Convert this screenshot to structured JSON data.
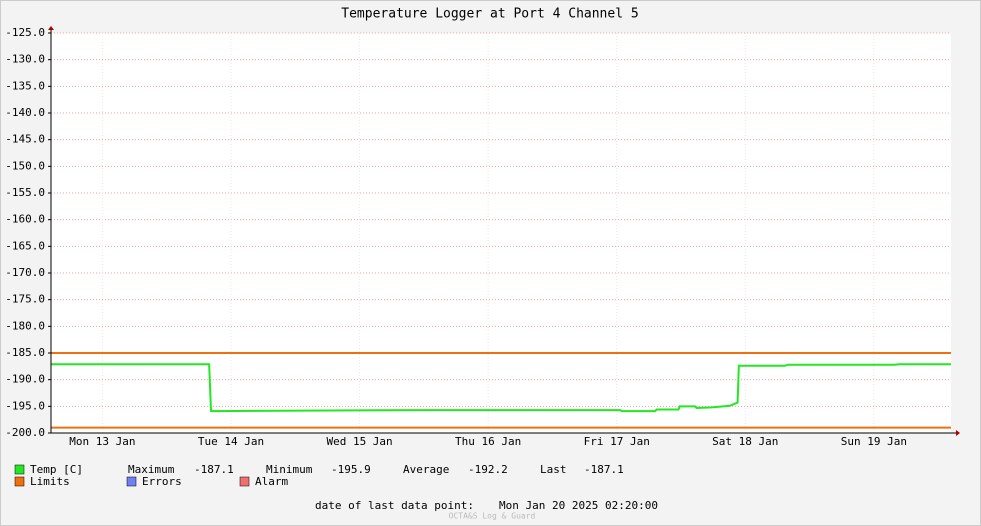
{
  "chart_data": {
    "type": "line",
    "title": "Temperature Logger at Port 4 Channel 5",
    "xlim": [
      13.1,
      20.1
    ],
    "xticks": [
      {
        "value": 13.5,
        "label": "Mon 13 Jan"
      },
      {
        "value": 14.5,
        "label": "Tue 14 Jan"
      },
      {
        "value": 15.5,
        "label": "Wed 15 Jan"
      },
      {
        "value": 16.5,
        "label": "Thu 16 Jan"
      },
      {
        "value": 17.5,
        "label": "Fri 17 Jan"
      },
      {
        "value": 18.5,
        "label": "Sat 18 Jan"
      },
      {
        "value": 19.5,
        "label": "Sun 19 Jan"
      }
    ],
    "ylim": [
      -200,
      -125
    ],
    "yticks": [
      {
        "value": -125,
        "label": "-125.0"
      },
      {
        "value": -130,
        "label": "-130.0"
      },
      {
        "value": -135,
        "label": "-135.0"
      },
      {
        "value": -140,
        "label": "-140.0"
      },
      {
        "value": -145,
        "label": "-145.0"
      },
      {
        "value": -150,
        "label": "-150.0"
      },
      {
        "value": -155,
        "label": "-155.0"
      },
      {
        "value": -160,
        "label": "-160.0"
      },
      {
        "value": -165,
        "label": "-165.0"
      },
      {
        "value": -170,
        "label": "-170.0"
      },
      {
        "value": -175,
        "label": "-175.0"
      },
      {
        "value": -180,
        "label": "-180.0"
      },
      {
        "value": -185,
        "label": "-185.0"
      },
      {
        "value": -190,
        "label": "-190.0"
      },
      {
        "value": -195,
        "label": "-195.0"
      },
      {
        "value": -200,
        "label": "-200.0"
      }
    ],
    "grid": true,
    "series": [
      {
        "name": "Temp [C]",
        "color": "#22e822",
        "x": [
          13.1,
          14.33,
          14.34,
          14.345,
          16.05,
          17.53,
          17.54,
          17.8,
          17.81,
          17.98,
          17.99,
          18.11,
          18.12,
          18.24,
          18.38,
          18.44,
          18.45,
          18.81,
          18.83,
          19.66,
          19.7,
          20.1
        ],
        "values": [
          -187.1,
          -187.1,
          -193.2,
          -195.9,
          -195.7,
          -195.7,
          -195.9,
          -195.9,
          -195.6,
          -195.6,
          -195.0,
          -195.0,
          -195.3,
          -195.2,
          -194.9,
          -194.3,
          -187.4,
          -187.4,
          -187.2,
          -187.2,
          -187.1,
          -187.1
        ]
      }
    ],
    "limit_lines": {
      "name": "Limits",
      "color": "#f07010",
      "values": [
        -185,
        -199
      ]
    },
    "extra_legend": [
      {
        "name": "Errors",
        "color": "#7080f0"
      },
      {
        "name": "Alarm",
        "color": "#f07070"
      }
    ],
    "stats": [
      {
        "label": "Maximum",
        "value": -187.1
      },
      {
        "label": "Minimum",
        "value": -195.9
      },
      {
        "label": "Average",
        "value": -192.2
      },
      {
        "label": "Last",
        "value": -187.1
      }
    ],
    "footer_label": "date of last data point:",
    "footer_date": "Mon Jan 20 2025 02:20:00",
    "watermark": "OCTA&S Log & Guard"
  }
}
